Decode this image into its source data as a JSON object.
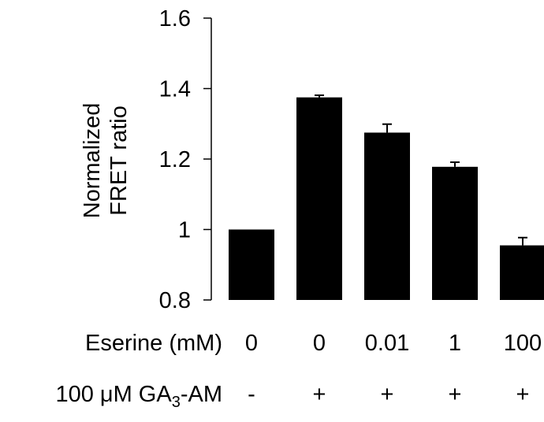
{
  "chart_data": {
    "type": "bar",
    "ylabel_lines": [
      "Normalized",
      "FRET ratio"
    ],
    "ylim": [
      0.8,
      1.6
    ],
    "yticks": [
      0.8,
      1,
      1.2,
      1.4,
      1.6
    ],
    "ytick_labels": [
      "0.8",
      "1",
      "1.2",
      "1.4",
      "1.6"
    ],
    "grid": false,
    "bar_color": "#000000",
    "values": [
      1.0,
      1.375,
      1.275,
      1.178,
      0.955
    ],
    "errors": [
      0.0,
      0.006,
      0.024,
      0.013,
      0.022
    ],
    "conditions": [
      {
        "label": "Eserine (mM)",
        "values": [
          "0",
          "0",
          "0.01",
          "1",
          "100"
        ]
      },
      {
        "label_prefix": "100 μM GA",
        "label_sub": "3",
        "label_suffix": "-AM",
        "values": [
          "-",
          "+",
          "+",
          "+",
          "+"
        ]
      }
    ]
  }
}
